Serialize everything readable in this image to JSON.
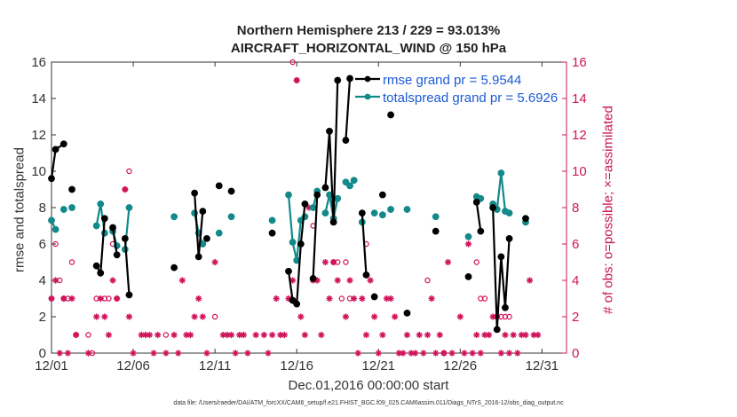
{
  "colors": {
    "rmse": "#000000",
    "spread": "#13898a",
    "obs": "#d1135a",
    "legend_text": "#1b5ad6",
    "axis": "#333333"
  },
  "chart_data": {
    "type": "line",
    "title": [
      "Northern Hemisphere 213 / 229 = 93.013%",
      "AIRCRAFT_HORIZONTAL_WIND @ 150 hPa"
    ],
    "xlabel": "Dec.01,2016 00:00:00 start",
    "ylabel": "rmse and totalspread",
    "ylabel_right": "# of obs: o=possible; ×=assimilated",
    "footnote": "data file: /Users/raeder/DAI/ATM_forcXX/CAM6_setup/f.e21.FHIST_BGC.f09_025.CAM6assim.011/Diags_NTrS_2016-12/obs_diag_output.nc",
    "xlim": [
      0,
      31.5
    ],
    "ylim": [
      0,
      16
    ],
    "ylim_right": [
      0,
      16
    ],
    "xticks": [
      0,
      5,
      10,
      15,
      20,
      25,
      30
    ],
    "xtick_labels": [
      "12/01",
      "12/06",
      "12/11",
      "12/16",
      "12/21",
      "12/26",
      "12/31"
    ],
    "yticks": [
      0,
      2,
      4,
      6,
      8,
      10,
      12,
      14,
      16
    ],
    "ytick_labels": [
      "0",
      "2",
      "4",
      "6",
      "8",
      "10",
      "12",
      "14",
      "16"
    ],
    "yticks_right": [
      0,
      2,
      4,
      6,
      8,
      10,
      12,
      14,
      16
    ],
    "ytick_labels_right": [
      "0",
      "2",
      "4",
      "6",
      "8",
      "10",
      "12",
      "14",
      "16"
    ],
    "legend": {
      "position": "top-right",
      "entries": [
        "rmse grand pr = 5.9544",
        "totalspread grand pr = 5.6926"
      ]
    },
    "series": [
      {
        "name": "rmse grand pr = 5.9544",
        "segments": [
          [
            [
              0.0,
              9.6
            ],
            [
              0.25,
              11.2
            ],
            [
              0.75,
              11.5
            ]
          ],
          [
            [
              1.25,
              9.0
            ]
          ],
          [
            [
              2.75,
              4.8
            ],
            [
              3.0,
              4.4
            ],
            [
              3.25,
              7.4
            ]
          ],
          [
            [
              3.75,
              6.9
            ],
            [
              4.0,
              5.4
            ]
          ],
          [
            [
              4.5,
              6.3
            ],
            [
              4.75,
              3.2
            ]
          ],
          [
            [
              7.5,
              4.7
            ]
          ],
          [
            [
              8.75,
              8.8
            ],
            [
              9.0,
              5.3
            ],
            [
              9.25,
              7.8
            ]
          ],
          [
            [
              9.5,
              6.3
            ]
          ],
          [
            [
              10.25,
              9.2
            ]
          ],
          [
            [
              11.0,
              8.9
            ]
          ],
          [
            [
              13.5,
              6.6
            ]
          ],
          [
            [
              14.5,
              4.5
            ],
            [
              14.75,
              2.9
            ],
            [
              15.0,
              2.7
            ],
            [
              15.25,
              6.0
            ],
            [
              15.5,
              8.2
            ]
          ],
          [
            [
              16.0,
              4.1
            ],
            [
              16.25,
              8.7
            ]
          ],
          [
            [
              16.75,
              9.1
            ],
            [
              17.0,
              12.2
            ],
            [
              17.25,
              7.2
            ],
            [
              17.5,
              15.0
            ]
          ],
          [
            [
              18.0,
              11.7
            ],
            [
              18.25,
              15.1
            ]
          ],
          [
            [
              19.0,
              7.7
            ],
            [
              19.25,
              4.3
            ]
          ],
          [
            [
              19.75,
              3.1
            ]
          ],
          [
            [
              20.25,
              8.7
            ]
          ],
          [
            [
              20.75,
              13.1
            ]
          ],
          [
            [
              21.75,
              2.2
            ]
          ],
          [
            [
              23.5,
              6.7
            ]
          ],
          [
            [
              25.5,
              4.2
            ]
          ],
          [
            [
              26.0,
              8.3
            ],
            [
              26.25,
              6.7
            ]
          ],
          [
            [
              27.0,
              8.0
            ],
            [
              27.25,
              1.3
            ],
            [
              27.5,
              5.3
            ],
            [
              27.75,
              2.5
            ],
            [
              28.0,
              6.3
            ]
          ],
          [
            [
              29.0,
              7.4
            ]
          ]
        ]
      },
      {
        "name": "totalspread grand pr = 5.6926",
        "segments": [
          [
            [
              0.0,
              7.3
            ],
            [
              0.25,
              6.8
            ]
          ],
          [
            [
              0.75,
              7.9
            ]
          ],
          [
            [
              1.25,
              8.0
            ]
          ],
          [
            [
              2.75,
              7.0
            ],
            [
              3.0,
              8.2
            ],
            [
              3.25,
              6.6
            ]
          ],
          [
            [
              3.75,
              6.7
            ],
            [
              4.0,
              5.9
            ]
          ],
          [
            [
              4.5,
              5.7
            ],
            [
              4.75,
              8.0
            ]
          ],
          [
            [
              7.5,
              7.5
            ]
          ],
          [
            [
              8.75,
              7.7
            ],
            [
              9.0,
              6.6
            ],
            [
              9.25,
              6.0
            ]
          ],
          [
            [
              10.25,
              6.6
            ]
          ],
          [
            [
              11.0,
              7.5
            ]
          ],
          [
            [
              13.5,
              7.3
            ]
          ],
          [
            [
              14.5,
              8.7
            ],
            [
              14.75,
              6.1
            ],
            [
              15.0,
              5.1
            ],
            [
              15.25,
              7.3
            ],
            [
              15.5,
              7.5
            ]
          ],
          [
            [
              16.0,
              8.0
            ],
            [
              16.25,
              8.9
            ]
          ],
          [
            [
              16.75,
              7.7
            ],
            [
              17.0,
              8.7
            ],
            [
              17.25,
              7.4
            ],
            [
              17.5,
              8.5
            ]
          ],
          [
            [
              18.0,
              9.4
            ],
            [
              18.25,
              9.2
            ],
            [
              18.5,
              9.5
            ]
          ],
          [
            [
              19.0,
              7.2
            ]
          ],
          [
            [
              19.75,
              7.7
            ]
          ],
          [
            [
              20.25,
              7.6
            ]
          ],
          [
            [
              20.75,
              7.9
            ]
          ],
          [
            [
              21.75,
              7.9
            ]
          ],
          [
            [
              23.5,
              7.5
            ]
          ],
          [
            [
              25.5,
              6.4
            ]
          ],
          [
            [
              26.0,
              8.6
            ],
            [
              26.25,
              8.5
            ]
          ],
          [
            [
              27.0,
              8.2
            ],
            [
              27.25,
              7.9
            ],
            [
              27.5,
              9.9
            ],
            [
              27.75,
              7.8
            ],
            [
              28.0,
              7.7
            ]
          ],
          [
            [
              29.0,
              7.2
            ]
          ]
        ]
      },
      {
        "name": "obs possible (o)",
        "x": [
          0.0,
          0.25,
          0.5,
          0.75,
          1.0,
          1.25,
          1.5,
          2.25,
          2.5,
          2.75,
          3.25,
          3.5,
          3.75,
          4.0,
          4.5,
          4.75,
          7.0,
          10.0,
          14.75,
          15.0,
          16.0,
          17.25,
          17.5,
          17.75,
          18.0,
          18.25,
          19.25,
          23.0,
          24.0,
          26.0,
          26.25,
          26.5,
          27.0,
          27.25,
          27.5,
          27.75,
          28.0
        ],
        "values": [
          3,
          6,
          4,
          3,
          3,
          5,
          1,
          1,
          0,
          3,
          3,
          3,
          6,
          3,
          9,
          10,
          1,
          2,
          16,
          15,
          7,
          5,
          5,
          3,
          5,
          3,
          6,
          4,
          0,
          5,
          3,
          3,
          8,
          2,
          2,
          2,
          2
        ]
      },
      {
        "name": "obs assimilated (×)",
        "x": [
          0.0,
          0.25,
          0.5,
          0.75,
          1.0,
          1.25,
          1.5,
          2.25,
          2.75,
          3.0,
          3.25,
          3.5,
          3.75,
          4.0,
          4.5,
          4.75,
          5.0,
          5.5,
          5.75,
          6.0,
          6.25,
          6.5,
          7.0,
          7.5,
          7.75,
          8.0,
          8.25,
          8.5,
          8.75,
          9.0,
          9.25,
          9.5,
          10.0,
          10.5,
          10.75,
          11.0,
          11.25,
          11.5,
          11.75,
          12.0,
          12.5,
          13.0,
          13.25,
          13.5,
          13.75,
          14.0,
          14.25,
          14.5,
          14.75,
          15.0,
          15.25,
          15.5,
          15.75,
          16.0,
          16.25,
          16.5,
          16.75,
          17.0,
          17.25,
          17.5,
          18.0,
          18.25,
          18.5,
          18.75,
          19.0,
          19.25,
          19.5,
          19.75,
          20.0,
          20.25,
          20.5,
          20.75,
          21.0,
          21.25,
          21.5,
          21.75,
          22.0,
          22.25,
          22.5,
          22.75,
          23.0,
          23.25,
          23.5,
          23.75,
          24.0,
          24.25,
          24.5,
          25.0,
          25.25,
          25.5,
          25.75,
          26.0,
          26.25,
          26.5,
          26.75,
          27.0,
          27.25,
          27.5,
          27.75,
          28.0,
          28.25,
          28.5,
          28.75,
          29.0,
          29.25,
          29.5,
          29.75
        ],
        "values": [
          3,
          4,
          0,
          3,
          0,
          3,
          1,
          0,
          2,
          3,
          2,
          1,
          4,
          3,
          9,
          2,
          0,
          1,
          1,
          1,
          0,
          1,
          0,
          1,
          0,
          4,
          1,
          1,
          2,
          3,
          2,
          0,
          5,
          1,
          1,
          1,
          0,
          1,
          1,
          0,
          1,
          1,
          0,
          1,
          3,
          1,
          1,
          3,
          4,
          15,
          2,
          1,
          8,
          4,
          4,
          1,
          5,
          3,
          5,
          4,
          2,
          4,
          3,
          0,
          3,
          1,
          4,
          2,
          0,
          1,
          3,
          3,
          2,
          0,
          0,
          1,
          0,
          0,
          1,
          0,
          1,
          3,
          0,
          1,
          0,
          5,
          0,
          2,
          0,
          6,
          0,
          1,
          0,
          1,
          1,
          2,
          2,
          0,
          1,
          0,
          1,
          0,
          1,
          1,
          4,
          1,
          1
        ]
      }
    ]
  }
}
